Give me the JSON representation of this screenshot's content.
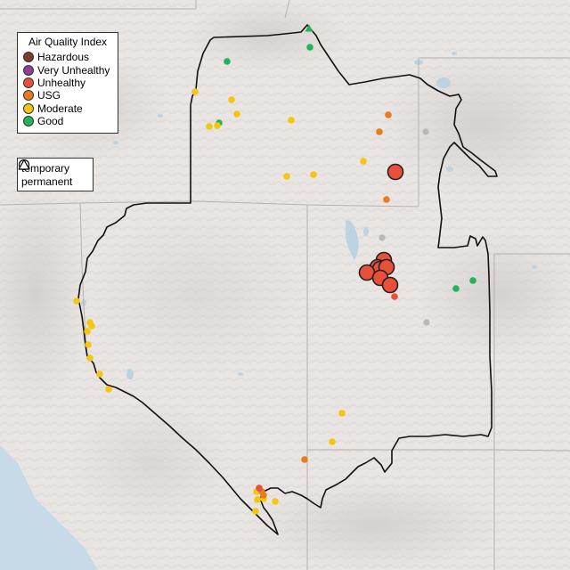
{
  "map": {
    "type": "air-quality-monitor-map",
    "colors": {
      "background": "#e6e3e1",
      "terrain_light": "#ebe8e6",
      "terrain_shade": "#d6d2cf",
      "water": "#bcd5e3",
      "ocean": "#c5d9e6",
      "state_lines": "#b5b2b0",
      "region_outline": "#111111",
      "inactive_monitor": "#b8b8b8"
    }
  },
  "legend": {
    "title": "Air Quality Index",
    "categories": [
      {
        "label": "Hazardous",
        "color": "#7e3b2e"
      },
      {
        "label": "Very Unhealthy",
        "color": "#8f3f97"
      },
      {
        "label": "Unhealthy",
        "color": "#e8503a"
      },
      {
        "label": "USG",
        "color": "#e87c1e"
      },
      {
        "label": "Moderate",
        "color": "#f6c50f"
      },
      {
        "label": "Good",
        "color": "#22b45a"
      }
    ]
  },
  "shape_legend": {
    "items": [
      {
        "label": "temporary",
        "icon": "circle-outline-icon"
      },
      {
        "label": "permanent",
        "icon": "triangle-outline-icon"
      }
    ]
  }
}
